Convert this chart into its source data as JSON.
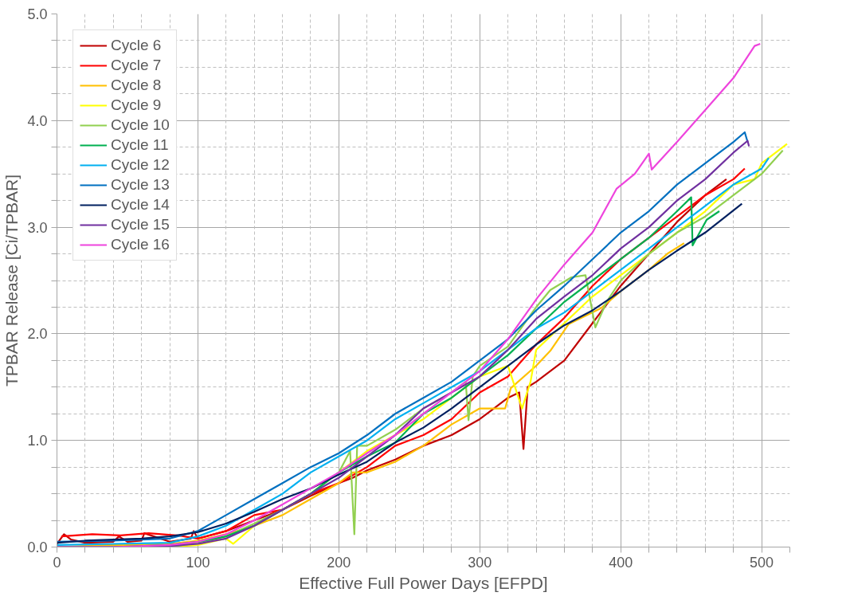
{
  "chart_data": {
    "type": "line",
    "xlabel": "Effective Full Power Days [EFPD]",
    "ylabel": "TPBAR Release [Ci/TPBAR]",
    "xlim": [
      0,
      520
    ],
    "ylim": [
      0,
      5.0
    ],
    "xticks": [
      0,
      {
        "value": 20,
        "label": null
      },
      {
        "value": 40,
        "label": null
      },
      {
        "value": 60,
        "label": null
      },
      {
        "value": 80,
        "label": null
      },
      100,
      {
        "value": 120,
        "label": null
      },
      {
        "value": 140,
        "label": null
      },
      {
        "value": 160,
        "label": null
      },
      {
        "value": 180,
        "label": null
      },
      200,
      {
        "value": 220,
        "label": null
      },
      {
        "value": 240,
        "label": null
      },
      {
        "value": 260,
        "label": null
      },
      {
        "value": 280,
        "label": null
      },
      300,
      {
        "value": 320,
        "label": null
      },
      {
        "value": 340,
        "label": null
      },
      {
        "value": 360,
        "label": null
      },
      {
        "value": 380,
        "label": null
      },
      400,
      {
        "value": 420,
        "label": null
      },
      {
        "value": 440,
        "label": null
      },
      {
        "value": 460,
        "label": null
      },
      {
        "value": 480,
        "label": null
      },
      500,
      {
        "value": 520,
        "label": null
      }
    ],
    "yticks": [
      {
        "value": 0,
        "label": "0.0"
      },
      {
        "value": 0.25,
        "label": null
      },
      {
        "value": 0.5,
        "label": null
      },
      {
        "value": 0.75,
        "label": null
      },
      {
        "value": 1,
        "label": "1.0"
      },
      {
        "value": 1.25,
        "label": null
      },
      {
        "value": 1.5,
        "label": null
      },
      {
        "value": 1.75,
        "label": null
      },
      {
        "value": 2,
        "label": "2.0"
      },
      {
        "value": 2.25,
        "label": null
      },
      {
        "value": 2.5,
        "label": null
      },
      {
        "value": 2.75,
        "label": null
      },
      {
        "value": 3,
        "label": "3.0"
      },
      {
        "value": 3.25,
        "label": null
      },
      {
        "value": 3.5,
        "label": null
      },
      {
        "value": 3.75,
        "label": null
      },
      {
        "value": 4,
        "label": "4.0"
      },
      {
        "value": 4.25,
        "label": null
      },
      {
        "value": 4.5,
        "label": null
      },
      {
        "value": 4.75,
        "label": null
      },
      {
        "value": 5,
        "label": "5.0"
      }
    ],
    "grid": true,
    "legend": "top left",
    "marker": "none",
    "line_style": "solid",
    "series": [
      {
        "name": "Cycle 6",
        "color": "#c00000",
        "x": [
          0,
          5,
          10,
          20,
          40,
          44,
          50,
          60,
          62,
          80,
          95,
          97,
          100,
          120,
          140,
          160,
          180,
          200,
          210,
          220,
          240,
          260,
          280,
          300,
          310,
          320,
          328,
          331,
          334,
          340,
          360,
          380,
          400,
          420,
          440,
          460,
          475
        ],
        "values": [
          0.03,
          0.12,
          0.07,
          0.04,
          0.05,
          0.1,
          0.05,
          0.06,
          0.13,
          0.05,
          0.08,
          0.15,
          0.08,
          0.15,
          0.25,
          0.35,
          0.48,
          0.6,
          0.65,
          0.72,
          0.82,
          0.95,
          1.05,
          1.2,
          1.3,
          1.4,
          1.45,
          0.92,
          1.5,
          1.55,
          1.75,
          2.1,
          2.45,
          2.75,
          3.05,
          3.3,
          3.45
        ]
      },
      {
        "name": "Cycle 7",
        "color": "#ff0000",
        "x": [
          3,
          25,
          45,
          65,
          85,
          100,
          120,
          140,
          160,
          180,
          200,
          220,
          240,
          260,
          280,
          300,
          320,
          340,
          360,
          380,
          400,
          420,
          440,
          460,
          480,
          488
        ],
        "values": [
          0.1,
          0.12,
          0.11,
          0.13,
          0.11,
          0.08,
          0.15,
          0.3,
          0.35,
          0.5,
          0.6,
          0.75,
          0.95,
          1.05,
          1.2,
          1.45,
          1.6,
          1.9,
          2.15,
          2.45,
          2.7,
          2.9,
          3.1,
          3.3,
          3.45,
          3.55
        ]
      },
      {
        "name": "Cycle 8",
        "color": "#ffc000",
        "x": [
          0,
          20,
          40,
          60,
          80,
          100,
          120,
          140,
          160,
          180,
          200,
          210,
          220,
          240,
          260,
          280,
          300,
          318,
          322,
          340,
          350,
          363,
          386,
          400,
          420,
          433,
          445
        ],
        "values": [
          0.0,
          0.01,
          0.02,
          0.02,
          0.03,
          0.06,
          0.12,
          0.2,
          0.3,
          0.45,
          0.6,
          0.7,
          0.7,
          0.8,
          0.95,
          1.15,
          1.3,
          1.3,
          1.49,
          1.7,
          1.84,
          2.09,
          2.24,
          2.4,
          2.6,
          2.75,
          2.85
        ]
      },
      {
        "name": "Cycle 9",
        "color": "#ffff00",
        "x": [
          0,
          80,
          100,
          120,
          125,
          140,
          160,
          180,
          200,
          220,
          240,
          260,
          280,
          300,
          320,
          330,
          336,
          340,
          360,
          380,
          400,
          420,
          440,
          460,
          480,
          495,
          500,
          518
        ],
        "values": [
          0.0,
          0.0,
          0.02,
          0.08,
          0.03,
          0.2,
          0.35,
          0.5,
          0.7,
          0.9,
          1.05,
          1.2,
          1.4,
          1.6,
          1.7,
          1.3,
          1.55,
          1.85,
          2.1,
          2.35,
          2.55,
          2.75,
          2.95,
          3.15,
          3.4,
          3.45,
          3.6,
          3.78
        ]
      },
      {
        "name": "Cycle 10",
        "color": "#92d050",
        "x": [
          0,
          40,
          80,
          100,
          120,
          140,
          160,
          180,
          200,
          208,
          211,
          213,
          220,
          240,
          260,
          280,
          290,
          292,
          295,
          300,
          320,
          340,
          350,
          365,
          375,
          382,
          390,
          400,
          420,
          440,
          460,
          480,
          500,
          515
        ],
        "values": [
          0.0,
          0.0,
          0.0,
          0.04,
          0.1,
          0.22,
          0.35,
          0.5,
          0.7,
          0.9,
          0.12,
          0.95,
          0.95,
          1.1,
          1.3,
          1.45,
          1.55,
          1.19,
          1.6,
          1.7,
          1.88,
          2.25,
          2.41,
          2.53,
          2.55,
          2.06,
          2.3,
          2.5,
          2.75,
          2.95,
          3.1,
          3.3,
          3.5,
          3.72
        ]
      },
      {
        "name": "Cycle 11",
        "color": "#00b050",
        "x": [
          0,
          40,
          80,
          100,
          120,
          140,
          160,
          180,
          200,
          220,
          240,
          260,
          280,
          300,
          320,
          340,
          360,
          380,
          400,
          420,
          440,
          450,
          451,
          461,
          470
        ],
        "values": [
          0.0,
          0.0,
          0.02,
          0.05,
          0.1,
          0.2,
          0.35,
          0.5,
          0.7,
          0.85,
          0.98,
          1.25,
          1.4,
          1.6,
          1.8,
          2.05,
          2.3,
          2.5,
          2.7,
          2.9,
          3.15,
          3.28,
          2.83,
          3.07,
          3.15
        ]
      },
      {
        "name": "Cycle 12",
        "color": "#00b0f0",
        "x": [
          0,
          40,
          80,
          100,
          120,
          140,
          160,
          180,
          200,
          220,
          240,
          260,
          280,
          300,
          320,
          340,
          360,
          380,
          400,
          420,
          440,
          460,
          480,
          500,
          505
        ],
        "values": [
          0.02,
          0.03,
          0.04,
          0.1,
          0.2,
          0.35,
          0.5,
          0.7,
          0.85,
          1.0,
          1.2,
          1.35,
          1.5,
          1.65,
          1.85,
          2.05,
          2.2,
          2.4,
          2.6,
          2.8,
          3.0,
          3.2,
          3.4,
          3.55,
          3.65
        ]
      },
      {
        "name": "Cycle 13",
        "color": "#0070c0",
        "x": [
          0,
          40,
          80,
          100,
          120,
          140,
          160,
          180,
          200,
          220,
          240,
          260,
          280,
          300,
          320,
          340,
          360,
          380,
          400,
          420,
          440,
          460,
          480,
          488,
          490
        ],
        "values": [
          0.05,
          0.06,
          0.08,
          0.15,
          0.3,
          0.45,
          0.6,
          0.75,
          0.88,
          1.05,
          1.25,
          1.4,
          1.55,
          1.75,
          1.95,
          2.22,
          2.45,
          2.7,
          2.95,
          3.15,
          3.4,
          3.6,
          3.8,
          3.89,
          3.8
        ]
      },
      {
        "name": "Cycle 14",
        "color": "#002060",
        "x": [
          0,
          20,
          40,
          60,
          80,
          100,
          120,
          140,
          160,
          180,
          200,
          220,
          240,
          260,
          280,
          300,
          320,
          340,
          360,
          380,
          400,
          420,
          440,
          460,
          486
        ],
        "values": [
          0.04,
          0.06,
          0.07,
          0.08,
          0.1,
          0.14,
          0.22,
          0.33,
          0.45,
          0.55,
          0.68,
          0.8,
          0.98,
          1.12,
          1.3,
          1.5,
          1.7,
          1.9,
          2.08,
          2.22,
          2.4,
          2.6,
          2.78,
          2.95,
          3.22
        ]
      },
      {
        "name": "Cycle 15",
        "color": "#7030a0",
        "x": [
          0,
          40,
          80,
          100,
          120,
          140,
          160,
          180,
          200,
          220,
          240,
          260,
          280,
          300,
          320,
          340,
          360,
          380,
          400,
          420,
          440,
          460,
          480,
          490,
          491
        ],
        "values": [
          0.0,
          0.0,
          0.01,
          0.03,
          0.08,
          0.2,
          0.35,
          0.5,
          0.65,
          0.85,
          1.05,
          1.3,
          1.45,
          1.6,
          1.85,
          2.14,
          2.35,
          2.55,
          2.8,
          3.0,
          3.25,
          3.45,
          3.7,
          3.81,
          3.76
        ]
      },
      {
        "name": "Cycle 16",
        "color": "#ee44dd",
        "x": [
          0,
          40,
          80,
          100,
          120,
          140,
          160,
          180,
          200,
          220,
          240,
          260,
          280,
          300,
          320,
          341,
          360,
          380,
          397,
          410,
          420,
          422,
          440,
          460,
          480,
          495,
          499
        ],
        "values": [
          0.0,
          0.0,
          0.02,
          0.05,
          0.12,
          0.25,
          0.4,
          0.55,
          0.7,
          0.88,
          1.05,
          1.25,
          1.45,
          1.65,
          1.95,
          2.34,
          2.65,
          2.95,
          3.36,
          3.5,
          3.69,
          3.54,
          3.8,
          4.1,
          4.4,
          4.7,
          4.72
        ]
      }
    ]
  }
}
